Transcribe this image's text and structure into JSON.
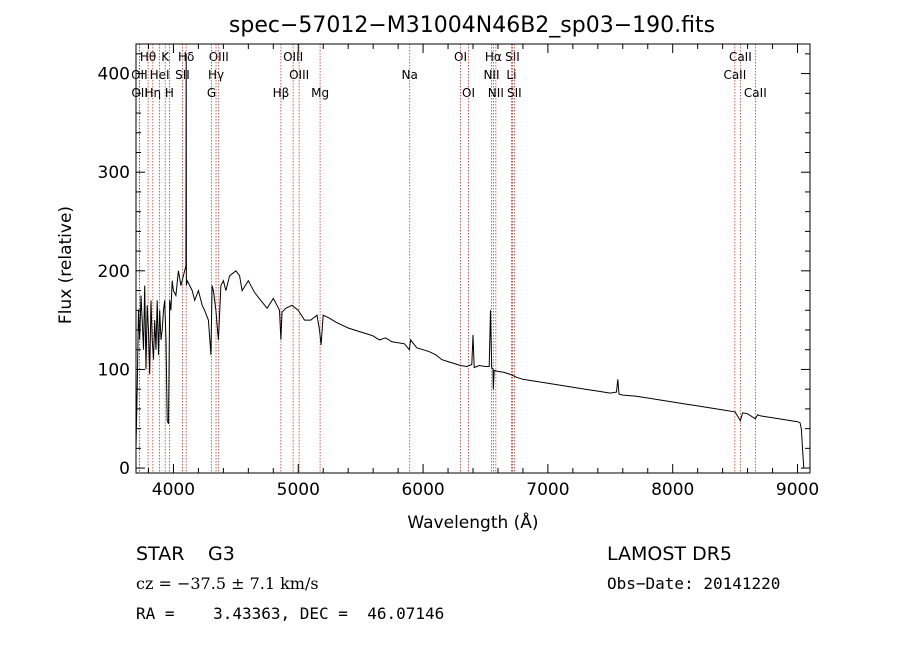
{
  "chart_data": {
    "type": "line",
    "title": "spec−57012−M31004N46B2_sp03−190.fits",
    "xlabel": "Wavelength (Å)",
    "ylabel": "Flux (relative)",
    "xlim": [
      3700,
      9100
    ],
    "ylim": [
      -5,
      430
    ],
    "x_ticks": [
      4000,
      5000,
      6000,
      7000,
      8000,
      9000
    ],
    "y_ticks": [
      0,
      100,
      200,
      300,
      400
    ],
    "grid": false,
    "series": [
      {
        "color": "#000000",
        "x": [
          3700,
          3710,
          3720,
          3730,
          3740,
          3750,
          3760,
          3770,
          3780,
          3790,
          3800,
          3810,
          3820,
          3830,
          3840,
          3850,
          3860,
          3870,
          3880,
          3890,
          3900,
          3910,
          3920,
          3930,
          3940,
          3950,
          3960,
          3970,
          3980,
          3990,
          4000,
          4020,
          4040,
          4060,
          4080,
          4100,
          4102,
          4104,
          4110,
          4130,
          4150,
          4170,
          4200,
          4230,
          4250,
          4280,
          4300,
          4310,
          4320,
          4340,
          4360,
          4380,
          4400,
          4420,
          4450,
          4500,
          4530,
          4550,
          4600,
          4650,
          4700,
          4750,
          4800,
          4830,
          4850,
          4861,
          4870,
          4900,
          4950,
          5000,
          5050,
          5100,
          5150,
          5170,
          5183,
          5200,
          5250,
          5300,
          5350,
          5400,
          5450,
          5500,
          5550,
          5600,
          5650,
          5700,
          5750,
          5800,
          5850,
          5890,
          5900,
          5950,
          6000,
          6050,
          6100,
          6150,
          6200,
          6250,
          6300,
          6350,
          6390,
          6400,
          6410,
          6450,
          6500,
          6530,
          6540,
          6550,
          6560,
          6563,
          6570,
          6600,
          6650,
          6700,
          6750,
          6800,
          6900,
          7000,
          7100,
          7200,
          7300,
          7400,
          7500,
          7550,
          7560,
          7570,
          7600,
          7700,
          7800,
          7900,
          8000,
          8100,
          8200,
          8300,
          8400,
          8500,
          8542,
          8560,
          8600,
          8662,
          8680,
          8700,
          8800,
          8900,
          9000,
          9020,
          9030,
          9040,
          9050
        ],
        "y": [
          20,
          80,
          160,
          130,
          175,
          150,
          120,
          185,
          100,
          165,
          140,
          95,
          170,
          130,
          110,
          150,
          120,
          170,
          115,
          160,
          130,
          140,
          160,
          170,
          130,
          48,
          45,
          170,
          160,
          190,
          180,
          175,
          200,
          185,
          195,
          205,
          420,
          185,
          190,
          185,
          180,
          170,
          180,
          165,
          160,
          150,
          115,
          185,
          180,
          160,
          130,
          185,
          190,
          180,
          195,
          200,
          195,
          180,
          190,
          178,
          170,
          162,
          172,
          165,
          160,
          130,
          158,
          162,
          165,
          160,
          150,
          150,
          155,
          140,
          125,
          155,
          152,
          148,
          145,
          142,
          140,
          138,
          136,
          134,
          130,
          132,
          128,
          127,
          126,
          120,
          130,
          122,
          120,
          118,
          115,
          110,
          108,
          106,
          104,
          103,
          105,
          135,
          102,
          104,
          103,
          103,
          160,
          102,
          100,
          80,
          99,
          98,
          97,
          95,
          92,
          90,
          88,
          86,
          84,
          82,
          80,
          78,
          76,
          77,
          90,
          75,
          74,
          73,
          71,
          69,
          67,
          65,
          63,
          61,
          59,
          57,
          48,
          56,
          55,
          50,
          54,
          53,
          51,
          49,
          47,
          46,
          40,
          20,
          0
        ]
      }
    ],
    "line_markers": [
      {
        "label": "Hθ",
        "wavelength": 3797,
        "row": 0
      },
      {
        "label": "OII",
        "wavelength": 3727,
        "row": 1
      },
      {
        "label": "OII",
        "wavelength": 3729,
        "row": 2
      },
      {
        "label": "HeI",
        "wavelength": 3889,
        "row": 1
      },
      {
        "label": "Hη",
        "wavelength": 3835,
        "row": 2
      },
      {
        "label": "K",
        "wavelength": 3934,
        "row": 0
      },
      {
        "label": "H",
        "wavelength": 3968,
        "row": 2
      },
      {
        "label": "SII",
        "wavelength": 4072,
        "row": 1
      },
      {
        "label": "Hδ",
        "wavelength": 4102,
        "row": 0
      },
      {
        "label": "OIII",
        "wavelength": 4363,
        "row": 0
      },
      {
        "label": "Hγ",
        "wavelength": 4341,
        "row": 1
      },
      {
        "label": "G",
        "wavelength": 4305,
        "row": 2
      },
      {
        "label": "Hβ",
        "wavelength": 4861,
        "row": 2
      },
      {
        "label": "OIII",
        "wavelength": 4959,
        "row": 0
      },
      {
        "label": "OIII",
        "wavelength": 5007,
        "row": 1
      },
      {
        "label": "Mg",
        "wavelength": 5175,
        "row": 2
      },
      {
        "label": "Na",
        "wavelength": 5893,
        "row": 1
      },
      {
        "label": "OI",
        "wavelength": 6300,
        "row": 0
      },
      {
        "label": "OI",
        "wavelength": 6364,
        "row": 2
      },
      {
        "label": "Hα",
        "wavelength": 6563,
        "row": 0
      },
      {
        "label": "NII",
        "wavelength": 6548,
        "row": 1
      },
      {
        "label": "NII",
        "wavelength": 6583,
        "row": 2
      },
      {
        "label": "SII",
        "wavelength": 6716,
        "row": 0
      },
      {
        "label": "Li",
        "wavelength": 6708,
        "row": 1
      },
      {
        "label": "SII",
        "wavelength": 6731,
        "row": 2
      },
      {
        "label": "CaII",
        "wavelength": 8542,
        "row": 0
      },
      {
        "label": "CaII",
        "wavelength": 8498,
        "row": 1
      },
      {
        "label": "CaII",
        "wavelength": 8662,
        "row": 2
      }
    ]
  },
  "info": {
    "class": "STAR",
    "subclass": "G3",
    "survey": "LAMOST DR5",
    "cz": "cz = −37.5 ± 7.1 km/s",
    "obs_date": "Obs−Date: 20141220",
    "coords": "RA =    3.43363, DEC =  46.07146"
  }
}
